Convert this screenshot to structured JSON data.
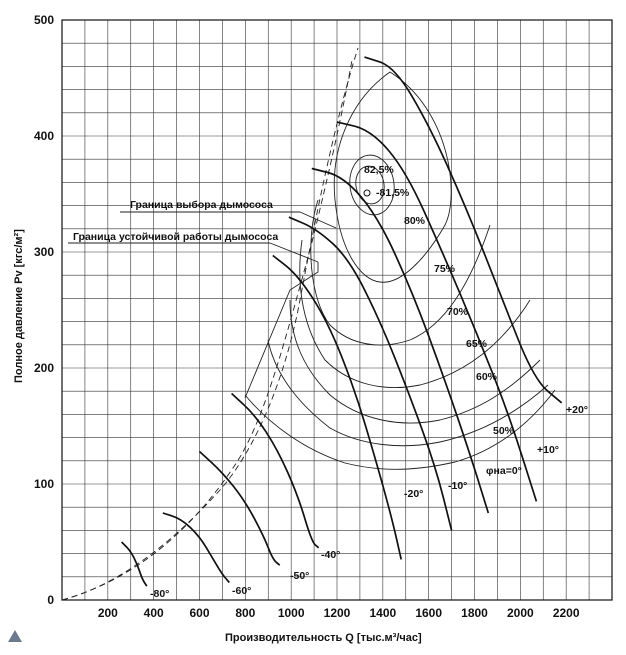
{
  "chart_data": {
    "type": "line",
    "xlabel": "Производительность Q [тыс.м³/час]",
    "ylabel": "Полное давление Pv [кгс/м²]",
    "xlim": [
      0,
      2400
    ],
    "ylim": [
      0,
      500
    ],
    "x_ticks": [
      "200",
      "400",
      "600",
      "800",
      "1000",
      "1200",
      "1400",
      "1600",
      "1800",
      "2000",
      "2200"
    ],
    "x_tick_values": [
      200,
      400,
      600,
      800,
      1000,
      1200,
      1400,
      1600,
      1800,
      2000,
      2200
    ],
    "y_ticks": [
      "0",
      "100",
      "200",
      "300",
      "400",
      "500"
    ],
    "y_tick_values": [
      0,
      100,
      200,
      300,
      400,
      500
    ],
    "grid": true,
    "angle_series": [
      {
        "name": "+20°",
        "points": [
          [
            1320,
            468
          ],
          [
            1450,
            460
          ],
          [
            1600,
            410
          ],
          [
            1760,
            340
          ],
          [
            1920,
            260
          ],
          [
            2060,
            190
          ],
          [
            2180,
            170
          ]
        ]
      },
      {
        "name": "+10°",
        "points": [
          [
            1200,
            412
          ],
          [
            1350,
            405
          ],
          [
            1500,
            370
          ],
          [
            1660,
            300
          ],
          [
            1810,
            230
          ],
          [
            1950,
            160
          ],
          [
            2070,
            85
          ]
        ]
      },
      {
        "name": "φна=0°",
        "points": [
          [
            1090,
            372
          ],
          [
            1230,
            365
          ],
          [
            1380,
            330
          ],
          [
            1530,
            265
          ],
          [
            1670,
            190
          ],
          [
            1790,
            120
          ],
          [
            1860,
            75
          ]
        ]
      },
      {
        "name": "-10°",
        "points": [
          [
            990,
            330
          ],
          [
            1110,
            320
          ],
          [
            1250,
            295
          ],
          [
            1390,
            240
          ],
          [
            1520,
            175
          ],
          [
            1630,
            115
          ],
          [
            1700,
            60
          ]
        ]
      },
      {
        "name": "-20°",
        "points": [
          [
            920,
            297
          ],
          [
            1030,
            280
          ],
          [
            1160,
            240
          ],
          [
            1280,
            180
          ],
          [
            1370,
            120
          ],
          [
            1440,
            70
          ],
          [
            1480,
            35
          ]
        ]
      },
      {
        "name": "-40°",
        "points": [
          [
            740,
            178
          ],
          [
            840,
            160
          ],
          [
            940,
            130
          ],
          [
            1030,
            90
          ],
          [
            1090,
            50
          ],
          [
            1120,
            45
          ]
        ]
      },
      {
        "name": "-50°",
        "points": [
          [
            600,
            128
          ],
          [
            700,
            110
          ],
          [
            800,
            85
          ],
          [
            880,
            55
          ],
          [
            920,
            35
          ],
          [
            950,
            30
          ]
        ]
      },
      {
        "name": "-60°",
        "points": [
          [
            440,
            75
          ],
          [
            520,
            70
          ],
          [
            600,
            55
          ],
          [
            660,
            35
          ],
          [
            700,
            22
          ],
          [
            730,
            15
          ]
        ]
      },
      {
        "name": "-80°",
        "points": [
          [
            260,
            50
          ],
          [
            300,
            42
          ],
          [
            330,
            30
          ],
          [
            350,
            18
          ],
          [
            370,
            12
          ]
        ]
      }
    ],
    "efficiency_labels": [
      "82,5%",
      "-81,5%",
      "80%",
      "75%",
      "70%",
      "65%",
      "60%",
      "50%"
    ],
    "annotations": [
      "Граница выбора дымососа",
      "Граница устойчивой работы дымососа"
    ]
  },
  "angle_labels": {
    "p20": "+20°",
    "p10": "+10°",
    "z0": "φна=0°",
    "m10": "-10°",
    "m20": "-20°",
    "m40": "-40°",
    "m50": "-50°",
    "m60": "-60°",
    "m80": "-80°"
  },
  "eff": {
    "e825": "82,5%",
    "e815": "-81,5%",
    "e80": "80%",
    "e75": "75%",
    "e70": "70%",
    "e65": "65%",
    "e60": "60%",
    "e50": "50%"
  },
  "annotations": {
    "selection": "Граница выбора дымососа",
    "stability": "Граница устойчивой работы дымососа"
  },
  "axis": {
    "x_title": "Производительность  Q [тыс.м³/час]",
    "y_title": "Полное давление  Pv [кгс/м²]"
  }
}
